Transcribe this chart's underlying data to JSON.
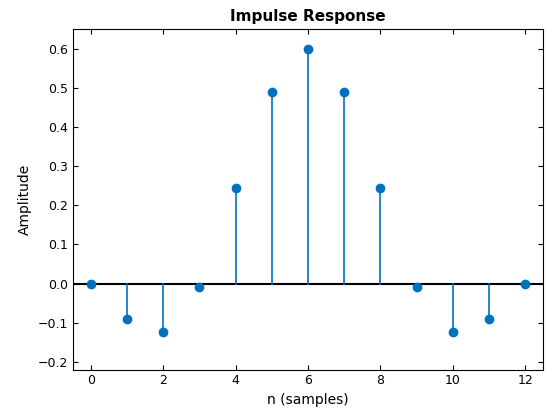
{
  "n": [
    0,
    1,
    2,
    3,
    4,
    5,
    6,
    7,
    8,
    9,
    10,
    11,
    12
  ],
  "amplitude": [
    0.0,
    -0.09,
    -0.125,
    -0.01,
    0.245,
    0.49,
    0.6,
    0.49,
    0.245,
    -0.01,
    -0.125,
    -0.09,
    0.0
  ],
  "title": "Impulse Response",
  "xlabel": "n (samples)",
  "ylabel": "Amplitude",
  "xlim": [
    -0.5,
    12.5
  ],
  "ylim": [
    -0.22,
    0.65
  ],
  "stem_color": "#0072BD",
  "baseline_color": "black",
  "marker_size": 6,
  "stem_linewidth": 1.2,
  "baseline_linewidth": 1.5,
  "title_fontsize": 11,
  "label_fontsize": 10,
  "tick_fontsize": 9,
  "xticks": [
    0,
    2,
    4,
    6,
    8,
    10,
    12
  ],
  "yticks": [
    -0.2,
    -0.1,
    0.0,
    0.1,
    0.2,
    0.3,
    0.4,
    0.5,
    0.6
  ]
}
